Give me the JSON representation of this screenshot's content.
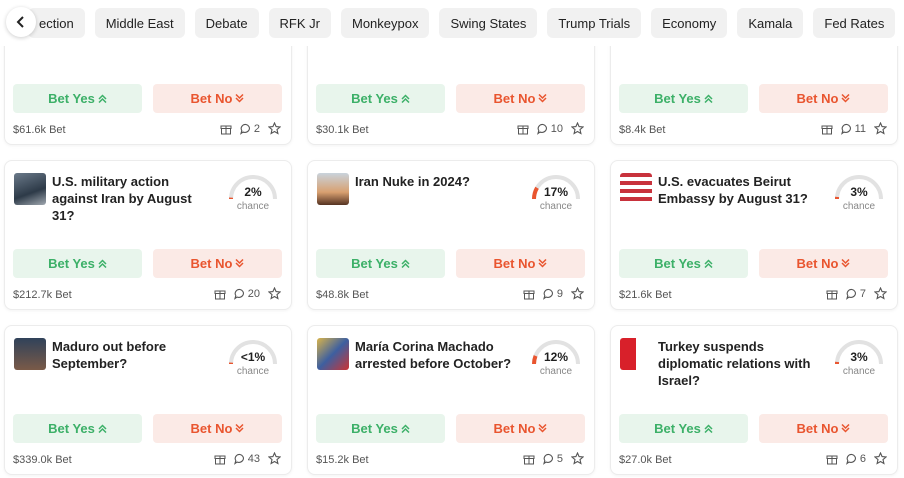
{
  "back_button": true,
  "tabs": [
    "ection",
    "Middle East",
    "Debate",
    "RFK Jr",
    "Monkeypox",
    "Swing States",
    "Trump Trials",
    "Economy",
    "Kamala",
    "Fed Rates"
  ],
  "cards": [
    {
      "volume": "$61.6k Bet",
      "comments": "2",
      "yes": "Bet Yes",
      "no": "Bet No"
    },
    {
      "volume": "$30.1k Bet",
      "comments": "10",
      "yes": "Bet Yes",
      "no": "Bet No"
    },
    {
      "volume": "$8.4k Bet",
      "comments": "11",
      "yes": "Bet Yes",
      "no": "Bet No"
    },
    {
      "title": "U.S. military action against Iran by August 31?",
      "percent": "2%",
      "chance": "chance",
      "volume": "$212.7k Bet",
      "comments": "20",
      "yes": "Bet Yes",
      "no": "Bet No"
    },
    {
      "title": "Iran Nuke in 2024?",
      "percent": "17%",
      "chance": "chance",
      "volume": "$48.8k Bet",
      "comments": "9",
      "yes": "Bet Yes",
      "no": "Bet No"
    },
    {
      "title": "U.S. evacuates Beirut Embassy by August 31?",
      "percent": "3%",
      "chance": "chance",
      "volume": "$21.6k Bet",
      "comments": "7",
      "yes": "Bet Yes",
      "no": "Bet No"
    },
    {
      "title": "Maduro out before September?",
      "percent": "<1%",
      "chance": "chance",
      "volume": "$339.0k Bet",
      "comments": "43",
      "yes": "Bet Yes",
      "no": "Bet No"
    },
    {
      "title": "María Corina Machado arrested before October?",
      "percent": "12%",
      "chance": "chance",
      "volume": "$15.2k Bet",
      "comments": "5",
      "yes": "Bet Yes",
      "no": "Bet No"
    },
    {
      "title": "Turkey suspends diplomatic relations with Israel?",
      "percent": "3%",
      "chance": "chance",
      "volume": "$27.0k Bet",
      "comments": "6",
      "yes": "Bet Yes",
      "no": "Bet No"
    }
  ]
}
